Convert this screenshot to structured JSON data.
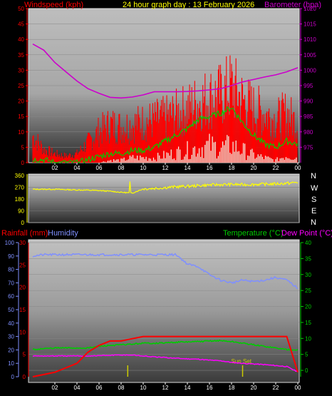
{
  "title": "24 hour graph day : 13 February 2026",
  "colors": {
    "wind": "#ff0000",
    "gust_fill": "#ff0000",
    "wind_avg": "#00cc00",
    "wind_low": "#ffffff",
    "baro": "#cc00cc",
    "winddir": "#ffff00",
    "rain": "#ff0000",
    "humidity": "#7f8fff",
    "temp": "#00cc00",
    "dew": "#ff00ff",
    "sunset": "#cccc00"
  },
  "chart_data": [
    {
      "type": "line",
      "title": "24 hour graph day : 13 February 2026",
      "ylabel_left": "Windspeed (kph)",
      "ylabel_right": "Barometer (hpa)",
      "x_ticks": [
        "02",
        "04",
        "06",
        "08",
        "10",
        "12",
        "14",
        "16",
        "18",
        "20",
        "22",
        "00"
      ],
      "y_left_ticks": [
        "50",
        "45",
        "40",
        "35",
        "30",
        "25",
        "20",
        "15",
        "10",
        "5",
        "0"
      ],
      "y_right_ticks": [
        "1020",
        "1015",
        "1010",
        "1005",
        "1000",
        "995",
        "990",
        "985",
        "980",
        "975"
      ],
      "ylim_left": [
        0,
        50
      ],
      "ylim_right": [
        970,
        1020
      ],
      "x_hours": [
        0,
        1,
        2,
        3,
        4,
        5,
        6,
        7,
        8,
        9,
        10,
        11,
        12,
        13,
        14,
        15,
        16,
        17,
        18,
        19,
        20,
        21,
        22,
        23,
        24
      ],
      "series": [
        {
          "key": "gust",
          "values": [
            12,
            6,
            4,
            3,
            4,
            9,
            14,
            17,
            16,
            17,
            18,
            19,
            20,
            22,
            24,
            27,
            29,
            30,
            34,
            28,
            24,
            22,
            19,
            22,
            17
          ]
        },
        {
          "key": "wind",
          "values": [
            3,
            2,
            1,
            1,
            1,
            3,
            6,
            7,
            7,
            8,
            9,
            10,
            11,
            13,
            14,
            15,
            15,
            16,
            17,
            15,
            12,
            11,
            9,
            11,
            10
          ]
        },
        {
          "key": "avg",
          "values": [
            1,
            1,
            0,
            0,
            0,
            1,
            2,
            3,
            3,
            4,
            4,
            5,
            7,
            9,
            11,
            14,
            15,
            16,
            18,
            13,
            9,
            6,
            5,
            7,
            6
          ]
        },
        {
          "key": "low",
          "values": [
            0,
            0,
            0,
            0,
            0,
            0,
            0,
            1,
            1,
            2,
            2,
            2,
            3,
            4,
            5,
            6,
            7,
            6,
            7,
            5,
            3,
            2,
            1,
            3,
            2
          ]
        },
        {
          "key": "baro",
          "values": [
            1008.5,
            1006.5,
            1002.5,
            999.5,
            996.5,
            994,
            992.5,
            991.2,
            991,
            991.3,
            992,
            993,
            993,
            993,
            993.1,
            993.3,
            993.6,
            994,
            995,
            996.2,
            997,
            997.8,
            998.5,
            999.5,
            1000.8
          ]
        }
      ]
    },
    {
      "type": "line",
      "ylabel_right": "N W S E N",
      "y_ticks": [
        "360",
        "270",
        "180",
        "90",
        "0"
      ],
      "ylim": [
        0,
        360
      ],
      "x_hours": [
        0,
        1,
        2,
        3,
        4,
        5,
        6,
        7,
        8,
        9,
        10,
        11,
        12,
        13,
        14,
        15,
        16,
        17,
        18,
        19,
        20,
        21,
        22,
        23,
        24
      ],
      "series": [
        {
          "key": "winddir",
          "values": [
            255,
            255,
            255,
            252,
            250,
            248,
            245,
            240,
            232,
            226,
            258,
            262,
            268,
            274,
            278,
            282,
            288,
            290,
            292,
            290,
            292,
            294,
            296,
            300,
            308
          ]
        }
      ]
    },
    {
      "type": "line",
      "ylabel_left": "Rainfall (mm)",
      "ylabel_humidity": "Humidity",
      "ylabel_right_temp": "Temperature (°C)",
      "ylabel_right_dew": "Dew Point (°C)",
      "x_ticks": [
        "02",
        "04",
        "06",
        "08",
        "10",
        "12",
        "14",
        "16",
        "18",
        "20",
        "22",
        "00"
      ],
      "y_humidity_ticks": [
        "100",
        "90",
        "80",
        "70",
        "60",
        "50",
        "40",
        "30",
        "20",
        "10",
        "0"
      ],
      "y_rain_ticks": [
        "30",
        "25",
        "20",
        "15",
        "10",
        "5",
        "0"
      ],
      "y_temp_ticks": [
        "40",
        "35",
        "30",
        "25",
        "20",
        "15",
        "10",
        "5",
        "0"
      ],
      "ylim_humidity": [
        0,
        100
      ],
      "ylim_rain": [
        0,
        30
      ],
      "ylim_temp": [
        -2,
        40
      ],
      "annotation": "Sun Set",
      "sunset_hour": 19,
      "x_hours": [
        0,
        1,
        2,
        3,
        4,
        5,
        6,
        7,
        8,
        9,
        10,
        11,
        12,
        13,
        14,
        15,
        16,
        17,
        18,
        19,
        20,
        21,
        22,
        23,
        24
      ],
      "series": [
        {
          "key": "humidity",
          "values": [
            90,
            91,
            91,
            91,
            91,
            91,
            91,
            91,
            91,
            91,
            91,
            91,
            91,
            91,
            84,
            82,
            76,
            72,
            70,
            72,
            71,
            72,
            74,
            72,
            66
          ]
        },
        {
          "key": "rain",
          "values": [
            0,
            0.5,
            1,
            2,
            3,
            5.5,
            7,
            8,
            8,
            8.5,
            9,
            9,
            9,
            9,
            9,
            9,
            9,
            9,
            9,
            9,
            9,
            9,
            9,
            9,
            1
          ]
        },
        {
          "key": "temp",
          "values": [
            6.5,
            6.8,
            7,
            7,
            7,
            7,
            7.5,
            7.8,
            8,
            8.2,
            8.5,
            8.5,
            8.6,
            8.8,
            8.9,
            9,
            9.2,
            9.3,
            9,
            8.5,
            8,
            7.5,
            7,
            6.5,
            6.5
          ]
        },
        {
          "key": "dew",
          "values": [
            4.5,
            4.5,
            4.5,
            4.5,
            4.5,
            4.5,
            4.6,
            4.7,
            4.8,
            4.8,
            4.5,
            4.2,
            4,
            3.8,
            3.6,
            3.5,
            3.2,
            3,
            2.5,
            2.2,
            2,
            1.8,
            1.5,
            1.2,
            -0.5
          ]
        }
      ]
    }
  ]
}
